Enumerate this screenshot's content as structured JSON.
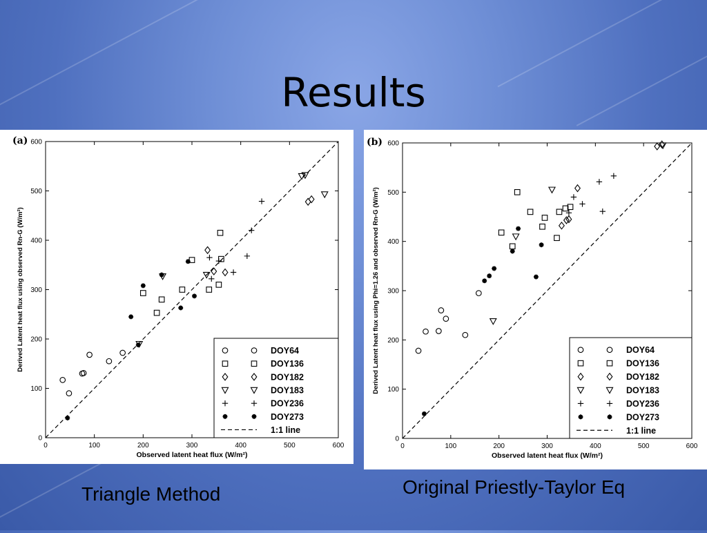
{
  "slide": {
    "title": "Results",
    "caption_a": "Triangle Method",
    "caption_b": "Original Priestly-Taylor Eq"
  },
  "chart_data": [
    {
      "type": "scatter",
      "panel_label": "(a)",
      "xlabel": "Observed latent heat flux (W/m²)",
      "ylabel": "Derived Latent heat flux using observed Rn-G (W/m²)",
      "xlim": [
        0,
        600
      ],
      "ylim": [
        0,
        600
      ],
      "xticks": [
        0,
        100,
        200,
        300,
        400,
        500,
        600
      ],
      "yticks": [
        0,
        100,
        200,
        300,
        400,
        500,
        600
      ],
      "legend_placement": "bottom-right",
      "reference_line": {
        "name": "1:1 line",
        "style": "dashed"
      },
      "series": [
        {
          "name": "DOY64",
          "marker": "circle",
          "points": [
            [
              35,
              117
            ],
            [
              48,
              90
            ],
            [
              75,
              130
            ],
            [
              78,
              131
            ],
            [
              90,
              168
            ],
            [
              130,
              155
            ],
            [
              158,
              172
            ]
          ]
        },
        {
          "name": "DOY136",
          "marker": "square",
          "points": [
            [
              200,
              293
            ],
            [
              228,
              253
            ],
            [
              238,
              280
            ],
            [
              280,
              300
            ],
            [
              300,
              360
            ],
            [
              335,
              300
            ],
            [
              355,
              310
            ],
            [
              358,
              415
            ],
            [
              360,
              362
            ]
          ]
        },
        {
          "name": "DOY182",
          "marker": "diamond",
          "points": [
            [
              332,
              380
            ],
            [
              345,
              337
            ],
            [
              368,
              335
            ],
            [
              538,
              478
            ],
            [
              545,
              483
            ]
          ]
        },
        {
          "name": "DOY183",
          "marker": "triangle-down",
          "points": [
            [
              192,
              190
            ],
            [
              240,
              327
            ],
            [
              330,
              330
            ],
            [
              525,
              530
            ],
            [
              532,
              532
            ],
            [
              572,
              493
            ]
          ]
        },
        {
          "name": "DOY236",
          "marker": "plus",
          "points": [
            [
              336,
              365
            ],
            [
              340,
              322
            ],
            [
              355,
              358
            ],
            [
              385,
              335
            ],
            [
              413,
              368
            ],
            [
              422,
              420
            ],
            [
              443,
              479
            ]
          ]
        },
        {
          "name": "DOY273",
          "marker": "asterisk",
          "points": [
            [
              45,
              40
            ],
            [
              175,
              245
            ],
            [
              190,
              188
            ],
            [
              200,
              308
            ],
            [
              238,
              330
            ],
            [
              277,
              263
            ],
            [
              292,
              357
            ],
            [
              305,
              287
            ]
          ]
        }
      ],
      "legend": [
        {
          "marker": "circle",
          "label": "DOY64"
        },
        {
          "marker": "square",
          "label": "DOY136"
        },
        {
          "marker": "diamond",
          "label": "DOY182"
        },
        {
          "marker": "triangle-down",
          "label": "DOY183"
        },
        {
          "marker": "plus",
          "label": "DOY236"
        },
        {
          "marker": "asterisk",
          "label": "DOY273"
        },
        {
          "marker": "dashed-line",
          "label": "1:1 line"
        }
      ]
    },
    {
      "type": "scatter",
      "panel_label": "(b)",
      "xlabel": "Observed latent heat flux (W/m²)",
      "ylabel": "Derived Latent heat flux using Phi=1.26 and observed Rn-G (W/m²)",
      "xlim": [
        0,
        600
      ],
      "ylim": [
        0,
        600
      ],
      "xticks": [
        0,
        100,
        200,
        300,
        400,
        500,
        600
      ],
      "yticks": [
        0,
        100,
        200,
        300,
        400,
        500,
        600
      ],
      "legend_placement": "bottom-right",
      "reference_line": {
        "name": "1:1 line",
        "style": "dashed"
      },
      "series": [
        {
          "name": "DOY64",
          "marker": "circle",
          "points": [
            [
              33,
              178
            ],
            [
              48,
              217
            ],
            [
              75,
              218
            ],
            [
              80,
              260
            ],
            [
              90,
              243
            ],
            [
              130,
              210
            ],
            [
              158,
              295
            ]
          ]
        },
        {
          "name": "DOY136",
          "marker": "square",
          "points": [
            [
              205,
              418
            ],
            [
              228,
              390
            ],
            [
              238,
              500
            ],
            [
              265,
              460
            ],
            [
              290,
              430
            ],
            [
              295,
              448
            ],
            [
              320,
              407
            ],
            [
              325,
              460
            ],
            [
              338,
              467
            ],
            [
              348,
              470
            ]
          ]
        },
        {
          "name": "DOY182",
          "marker": "diamond",
          "points": [
            [
              330,
              432
            ],
            [
              340,
              443
            ],
            [
              345,
              445
            ],
            [
              363,
              508
            ],
            [
              528,
              593
            ],
            [
              538,
              597
            ]
          ]
        },
        {
          "name": "DOY183",
          "marker": "triangle-down",
          "points": [
            [
              188,
              238
            ],
            [
              235,
              410
            ],
            [
              310,
              505
            ],
            [
              540,
              595
            ]
          ]
        },
        {
          "name": "DOY236",
          "marker": "plus",
          "points": [
            [
              345,
              458
            ],
            [
              355,
              490
            ],
            [
              373,
              476
            ],
            [
              408,
              521
            ],
            [
              415,
              461
            ],
            [
              438,
              533
            ]
          ]
        },
        {
          "name": "DOY273",
          "marker": "asterisk",
          "points": [
            [
              45,
              50
            ],
            [
              170,
              320
            ],
            [
              180,
              330
            ],
            [
              190,
              345
            ],
            [
              228,
              380
            ],
            [
              240,
              426
            ],
            [
              277,
              328
            ],
            [
              288,
              393
            ]
          ]
        }
      ],
      "legend": [
        {
          "marker": "circle",
          "label": "DOY64"
        },
        {
          "marker": "square",
          "label": "DOY136"
        },
        {
          "marker": "diamond",
          "label": "DOY182"
        },
        {
          "marker": "triangle-down",
          "label": "DOY183"
        },
        {
          "marker": "plus",
          "label": "DOY236"
        },
        {
          "marker": "asterisk",
          "label": "DOY273"
        },
        {
          "marker": "dashed-line",
          "label": "1:1 line"
        }
      ]
    }
  ]
}
